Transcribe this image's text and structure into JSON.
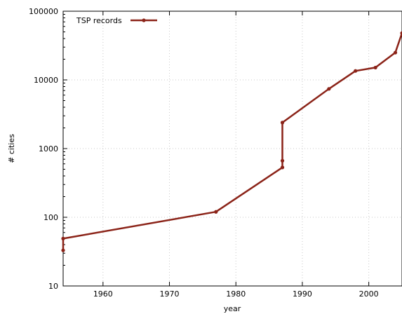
{
  "chart_data": {
    "type": "line",
    "title": "",
    "xlabel": "year",
    "ylabel": "# cities",
    "yscale": "log",
    "xlim": [
      1954,
      2005
    ],
    "ylim": [
      10,
      100000
    ],
    "xticks": [
      1960,
      1970,
      1980,
      1990,
      2000
    ],
    "xtick_labels": [
      "1960",
      "1970",
      "1980",
      "1990",
      "2000"
    ],
    "yticks": [
      10,
      100,
      1000,
      10000,
      100000
    ],
    "ytick_labels": [
      "10",
      "100",
      "1000",
      "10000",
      "100000"
    ],
    "grid": true,
    "legend_position": "top-left",
    "series": [
      {
        "name": "TSP records",
        "color": "#8b2318",
        "points": [
          {
            "x": 1954,
            "y": 33
          },
          {
            "x": 1954,
            "y": 49
          },
          {
            "x": 1977,
            "y": 120
          },
          {
            "x": 1987,
            "y": 532
          },
          {
            "x": 1987,
            "y": 666
          },
          {
            "x": 1987,
            "y": 2392
          },
          {
            "x": 1994,
            "y": 7397
          },
          {
            "x": 1998,
            "y": 13509
          },
          {
            "x": 2001,
            "y": 15112
          },
          {
            "x": 2004,
            "y": 24978
          },
          {
            "x": 2005,
            "y": 48000
          }
        ]
      }
    ]
  }
}
